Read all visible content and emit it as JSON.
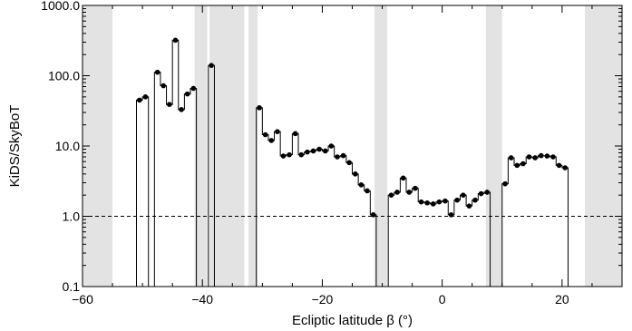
{
  "chart_data": {
    "type": "histogram-step",
    "xlabel": "Ecliptic latitude β (°)",
    "ylabel": "KiDS/SkyBoT",
    "xlim": [
      -60,
      30
    ],
    "ylim": [
      0.1,
      1000
    ],
    "yscale": "log",
    "x_ticks": [
      -60,
      -40,
      -20,
      0,
      20
    ],
    "x_tick_labels": [
      "−60",
      "−40",
      "−20",
      "0",
      "20"
    ],
    "y_ticks": [
      0.1,
      1,
      10,
      100,
      1000
    ],
    "y_tick_labels": [
      "0.1",
      "1.0",
      "10.0",
      "100.0",
      "1000.0"
    ],
    "reference_line": {
      "y": 1.0,
      "style": "dashed"
    },
    "excluded_bands": [
      [
        -60,
        -55
      ],
      [
        -41.3,
        -39.2
      ],
      [
        -38.8,
        -33
      ],
      [
        -32.3,
        -30.8
      ],
      [
        -11.3,
        -9.2
      ],
      [
        7.3,
        10
      ],
      [
        23.8,
        30
      ]
    ],
    "bin_width": 1,
    "points": [
      {
        "x": -50.5,
        "y": 45
      },
      {
        "x": -49.5,
        "y": 50
      },
      {
        "x": -47.5,
        "y": 112
      },
      {
        "x": -46.5,
        "y": 72
      },
      {
        "x": -45.5,
        "y": 39
      },
      {
        "x": -44.5,
        "y": 320
      },
      {
        "x": -43.5,
        "y": 33
      },
      {
        "x": -42.5,
        "y": 55
      },
      {
        "x": -41.5,
        "y": 66
      },
      {
        "x": -38.5,
        "y": 140
      },
      {
        "x": -30.5,
        "y": 35
      },
      {
        "x": -29.5,
        "y": 14.5
      },
      {
        "x": -28.5,
        "y": 12
      },
      {
        "x": -27.5,
        "y": 16
      },
      {
        "x": -26.5,
        "y": 7.2
      },
      {
        "x": -25.5,
        "y": 7.5
      },
      {
        "x": -24.5,
        "y": 15
      },
      {
        "x": -23.5,
        "y": 7.5
      },
      {
        "x": -22.5,
        "y": 8.2
      },
      {
        "x": -21.5,
        "y": 8.5
      },
      {
        "x": -20.5,
        "y": 9
      },
      {
        "x": -19.5,
        "y": 8.5
      },
      {
        "x": -18.5,
        "y": 10
      },
      {
        "x": -17.5,
        "y": 7
      },
      {
        "x": -16.5,
        "y": 7.3
      },
      {
        "x": -15.5,
        "y": 5.8
      },
      {
        "x": -14.5,
        "y": 4
      },
      {
        "x": -13.5,
        "y": 2.8
      },
      {
        "x": -12.5,
        "y": 2.3
      },
      {
        "x": -11.5,
        "y": 1.05
      },
      {
        "x": -8.5,
        "y": 2
      },
      {
        "x": -7.5,
        "y": 2.2
      },
      {
        "x": -6.5,
        "y": 3.5
      },
      {
        "x": -5.5,
        "y": 2.2
      },
      {
        "x": -4.5,
        "y": 2.5
      },
      {
        "x": -3.5,
        "y": 1.6
      },
      {
        "x": -2.5,
        "y": 1.55
      },
      {
        "x": -1.5,
        "y": 1.5
      },
      {
        "x": -0.5,
        "y": 1.6
      },
      {
        "x": 0.5,
        "y": 1.65
      },
      {
        "x": 1.5,
        "y": 1.05
      },
      {
        "x": 2.5,
        "y": 1.7
      },
      {
        "x": 3.5,
        "y": 2
      },
      {
        "x": 4.5,
        "y": 1.4
      },
      {
        "x": 5.5,
        "y": 1.7
      },
      {
        "x": 6.5,
        "y": 2.1
      },
      {
        "x": 7.5,
        "y": 2.2
      },
      {
        "x": 10.5,
        "y": 2.9
      },
      {
        "x": 11.5,
        "y": 6.8
      },
      {
        "x": 12.5,
        "y": 5.3
      },
      {
        "x": 13.5,
        "y": 5.6
      },
      {
        "x": 14.5,
        "y": 7
      },
      {
        "x": 15.5,
        "y": 6.8
      },
      {
        "x": 16.5,
        "y": 7.3
      },
      {
        "x": 17.5,
        "y": 7.2
      },
      {
        "x": 18.5,
        "y": 7
      },
      {
        "x": 19.5,
        "y": 5.3
      },
      {
        "x": 20.5,
        "y": 4.9
      }
    ],
    "colors": {
      "band": "#e3e3e3",
      "line": "#000000",
      "marker": "#000000"
    }
  }
}
